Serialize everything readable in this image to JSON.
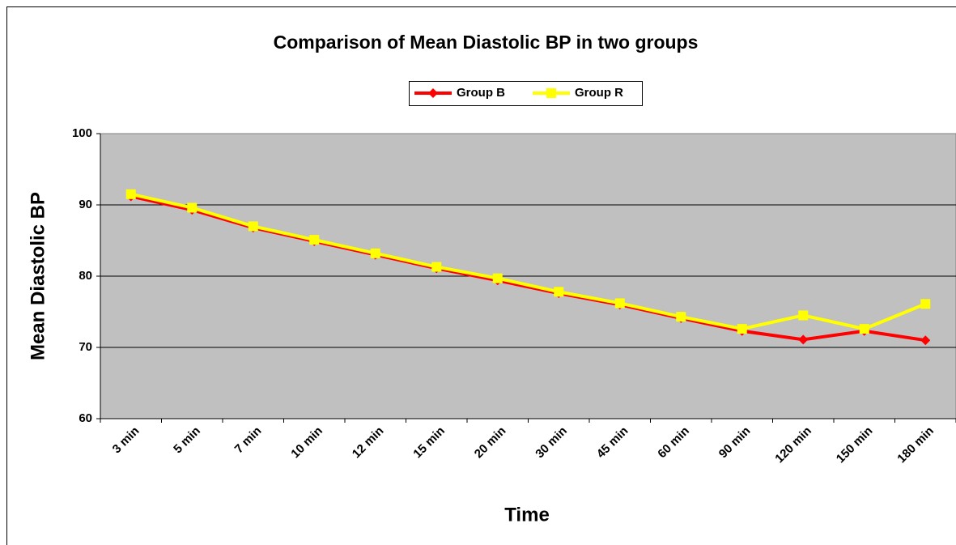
{
  "chart_data": {
    "type": "line",
    "title": "Comparison of Mean Diastolic BP in two groups",
    "x_label": "Time",
    "y_label": "Mean Diastolic BP",
    "categories": [
      "3 min",
      "5 min",
      "7 min",
      "10 min",
      "12 min",
      "15 min",
      "20 min",
      "30 min",
      "45 min",
      "60 min",
      "90 min",
      "120 min",
      "150 min",
      "180 min"
    ],
    "series": [
      {
        "name": "Group B",
        "color": "#ff0000",
        "marker": "diamond",
        "values": [
          91.2,
          89.3,
          86.8,
          84.9,
          83.0,
          81.1,
          79.4,
          77.6,
          76.0,
          74.1,
          72.3,
          71.1,
          72.3,
          71.0
        ]
      },
      {
        "name": "Group R",
        "color": "#ffff00",
        "marker": "square",
        "values": [
          91.5,
          89.6,
          87.0,
          85.1,
          83.2,
          81.3,
          79.7,
          77.8,
          76.2,
          74.3,
          72.6,
          74.5,
          72.6,
          76.1
        ]
      }
    ],
    "ylim": [
      60,
      100
    ],
    "yticks": [
      60,
      70,
      80,
      90,
      100
    ],
    "grid": true,
    "legend": "top"
  }
}
